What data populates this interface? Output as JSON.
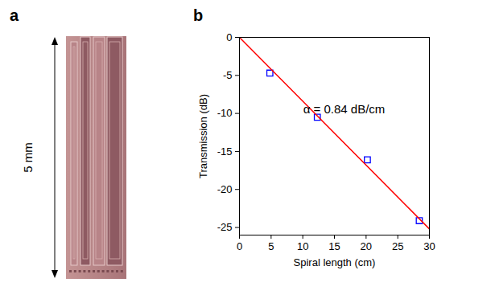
{
  "image_panel": {
    "label": "a",
    "scale_label": "5 mm"
  },
  "chart_data": {
    "type": "scatter",
    "panel_label": "b",
    "annotation": "α = 0.84 dB/cm",
    "x_label": "Spiral length (cm)",
    "y_label": "Transmission (dB)",
    "xlim": [
      0,
      30
    ],
    "xticks": [
      0,
      5,
      10,
      15,
      20,
      25,
      30
    ],
    "ylim": [
      -26,
      0
    ],
    "yticks": [
      -25,
      -20,
      -15,
      -10,
      -5,
      0
    ],
    "grid": false,
    "series": [
      {
        "type": "scatter",
        "color": "#0000ff",
        "marker": "square",
        "x": [
          4.8,
          12.3,
          20.2,
          28.4
        ],
        "values": [
          -4.7,
          -10.5,
          -16.1,
          -24.1
        ]
      },
      {
        "type": "line",
        "color": "#ff0000",
        "line_style": "solid",
        "x": [
          0,
          30
        ],
        "values": [
          0,
          -25.2
        ]
      }
    ]
  }
}
